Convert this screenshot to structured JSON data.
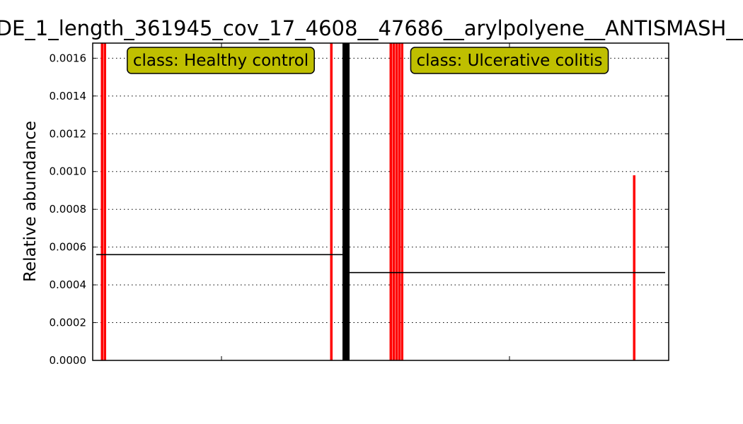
{
  "chart_data": {
    "type": "bar",
    "title": "DE_1_length_361945_cov_17_4608__47686__arylpolyene__ANTISMASH__",
    "ylabel": "Relative abundance",
    "xlabel": "",
    "ylim": [
      0,
      0.00168
    ],
    "yticks": [
      "0.0000",
      "0.0002",
      "0.0004",
      "0.0006",
      "0.0008",
      "0.0010",
      "0.0012",
      "0.0014",
      "0.0016"
    ],
    "grid": "horizontal dotted",
    "bar_color": "#ff0000",
    "mean_line_color": "#000000",
    "box_color": "#bfbf00",
    "classes": [
      {
        "label": "class: Healthy control",
        "mean": 0.00056,
        "samples": [
          {
            "index": 2,
            "value": 0.00168
          },
          {
            "index": 3,
            "value": 0.00168
          },
          {
            "index": 83,
            "value": 0.00168
          }
        ]
      },
      {
        "label": "class: Ulcerative colitis",
        "mean": 0.000465,
        "samples": [
          {
            "index": 104,
            "value": 0.00168
          },
          {
            "index": 105,
            "value": 0.00168
          },
          {
            "index": 106,
            "value": 0.00168
          },
          {
            "index": 107,
            "value": 0.00168
          },
          {
            "index": 108,
            "value": 0.00168
          },
          {
            "index": 190,
            "value": 0.00098
          }
        ]
      }
    ]
  }
}
